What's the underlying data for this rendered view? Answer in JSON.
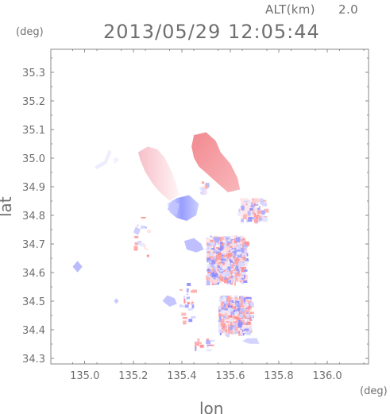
{
  "header": {
    "alt_label": "ALT(km)",
    "alt_value": "2.0",
    "timestamp": "2013/05/29 12:05:44"
  },
  "chart_data": {
    "type": "heatmap",
    "title": "2013/05/29 12:05:44",
    "xlabel": "lon",
    "ylabel": "lat",
    "xunit": "(deg)",
    "yunit": "(deg)",
    "xlim": [
      134.86,
      136.17
    ],
    "ylim": [
      34.28,
      35.38
    ],
    "x_ticks": [
      "135.0",
      "135.2",
      "135.4",
      "135.6",
      "135.8",
      "136.0"
    ],
    "y_ticks": [
      "34.3",
      "34.4",
      "34.5",
      "34.6",
      "34.7",
      "34.8",
      "34.9",
      "35.0",
      "35.1",
      "35.2",
      "35.3"
    ],
    "grid": false,
    "colors": {
      "positive": "#ff8f8f",
      "negative": "#8f8fff",
      "neutral": "#f2dfe6"
    },
    "patches": [
      {
        "name": "north-west-pale-blue",
        "lon": [
          135.04,
          135.11
        ],
        "lat": [
          34.97,
          35.03
        ],
        "value": -0.12
      },
      {
        "name": "north-west-small-blue",
        "lon": [
          135.12,
          135.14
        ],
        "lat": [
          34.98,
          35.0
        ],
        "value": -0.05
      },
      {
        "name": "central-pink-ridge",
        "lon": [
          135.22,
          135.39
        ],
        "lat": [
          34.85,
          35.04
        ],
        "value": 0.35
      },
      {
        "name": "north-east-red-mass",
        "lon": [
          135.44,
          135.64
        ],
        "lat": [
          34.88,
          35.09
        ],
        "value": 0.95
      },
      {
        "name": "central-blue-band",
        "lon": [
          135.34,
          135.47
        ],
        "lat": [
          34.78,
          34.87
        ],
        "value": -0.55
      },
      {
        "name": "central-left-blue",
        "lon": [
          135.34,
          135.39
        ],
        "lat": [
          34.8,
          34.85
        ],
        "value": -0.45
      },
      {
        "name": "west-small-blue-spot",
        "lon": [
          135.2,
          135.23
        ],
        "lat": [
          34.73,
          34.76
        ],
        "value": -0.4
      },
      {
        "name": "middle-blue-streak",
        "lon": [
          135.41,
          135.49
        ],
        "lat": [
          34.67,
          34.72
        ],
        "value": -0.55
      },
      {
        "name": "west-isolated-blue",
        "lon": [
          134.95,
          134.99
        ],
        "lat": [
          34.6,
          34.64
        ],
        "value": -0.6
      },
      {
        "name": "south-west-blue-spot",
        "lon": [
          135.12,
          135.14
        ],
        "lat": [
          34.49,
          34.51
        ],
        "value": -0.45
      },
      {
        "name": "south-central-blue",
        "lon": [
          135.32,
          135.38
        ],
        "lat": [
          34.48,
          34.52
        ],
        "value": -0.5
      },
      {
        "name": "city-mixed-area",
        "lon": [
          135.5,
          135.66
        ],
        "lat": [
          34.57,
          34.73
        ],
        "value": 0.15
      },
      {
        "name": "south-city-mixed",
        "lon": [
          135.55,
          135.68
        ],
        "lat": [
          34.39,
          34.52
        ],
        "value": 0.1
      },
      {
        "name": "east-coast-blue",
        "lon": [
          135.65,
          135.72
        ],
        "lat": [
          34.35,
          34.37
        ],
        "value": -0.35
      },
      {
        "name": "east-scatter-tail",
        "lon": [
          135.63,
          135.74
        ],
        "lat": [
          34.78,
          34.86
        ],
        "value": 0.15
      }
    ]
  }
}
